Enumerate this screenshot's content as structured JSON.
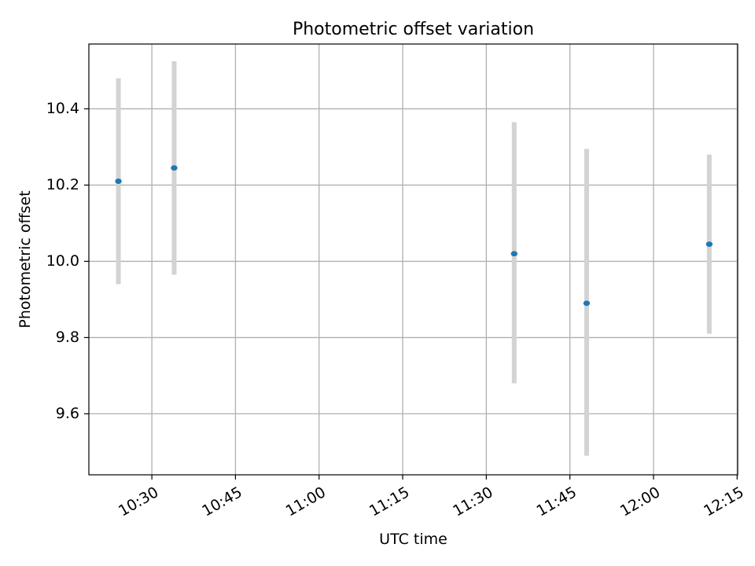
{
  "chart_data": {
    "type": "scatter",
    "title": "Photometric offset variation",
    "xlabel": "UTC time",
    "ylabel": "Photometric offset",
    "x_ticks": [
      "10:30",
      "10:45",
      "11:00",
      "11:15",
      "11:30",
      "11:45",
      "12:00",
      "12:15"
    ],
    "y_ticks": [
      9.6,
      9.8,
      10.0,
      10.2,
      10.4
    ],
    "xlim": [
      "10:19",
      "12:15"
    ],
    "ylim": [
      9.44,
      10.57
    ],
    "grid": true,
    "points": [
      {
        "x": "10:24",
        "y": 10.21,
        "yerr_low": 9.94,
        "yerr_high": 10.48
      },
      {
        "x": "10:34",
        "y": 10.245,
        "yerr_low": 9.965,
        "yerr_high": 10.525
      },
      {
        "x": "11:35",
        "y": 10.02,
        "yerr_low": 9.68,
        "yerr_high": 10.365
      },
      {
        "x": "11:48",
        "y": 9.89,
        "yerr_low": 9.49,
        "yerr_high": 10.295
      },
      {
        "x": "12:10",
        "y": 10.045,
        "yerr_low": 9.81,
        "yerr_high": 10.28
      }
    ],
    "colors": {
      "point": "#1f77b4",
      "errorbar": "#d3d3d3",
      "grid": "#b0b0b0"
    }
  }
}
